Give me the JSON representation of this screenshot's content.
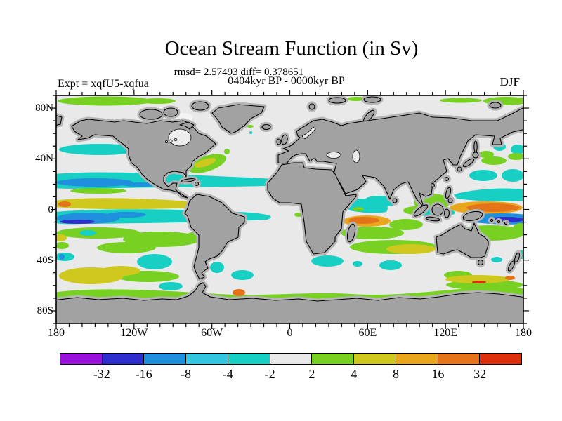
{
  "header": {
    "title": "Ocean Stream Function (in Sv)",
    "stats": "rmsd= 2.57493 diff= 0.378651",
    "period": "0404kyr BP - 0000kyr BP",
    "experiment": "Expt = xqfU5-xqfua",
    "season": "DJF"
  },
  "axes": {
    "lat_labels": [
      "80N",
      "40N",
      "0",
      "40S",
      "80S"
    ],
    "lon_labels": [
      "180",
      "120W",
      "60W",
      "0",
      "60E",
      "120E",
      "180"
    ]
  },
  "colorbar": {
    "tick_labels": [
      "-32",
      "-16",
      "-8",
      "-4",
      "-2",
      "2",
      "4",
      "8",
      "16",
      "32"
    ],
    "colors": [
      "#9912D9",
      "#2E2ECD",
      "#1F90DC",
      "#35C6DF",
      "#17CFC3",
      "#E9E9E9",
      "#77D022",
      "#CFC91F",
      "#E8A71C",
      "#E5731A",
      "#DC2F0E"
    ]
  },
  "chart_data": {
    "type": "filled_contour_map",
    "title": "Ocean Stream Function (in Sv)",
    "units": "Sv",
    "projection": "equirectangular",
    "season": "DJF",
    "experiment_difference": "xqfU5-xqfua",
    "period_difference": "0404kyr BP - 0000kyr BP",
    "stats": {
      "rmsd": 2.57493,
      "diff": 0.378651
    },
    "contour_levels": [
      -32,
      -16,
      -8,
      -4,
      -2,
      2,
      4,
      8,
      16,
      32
    ],
    "level_colors": [
      "#9912D9",
      "#2E2ECD",
      "#1F90DC",
      "#35C6DF",
      "#17CFC3",
      "#E9E9E9",
      "#77D022",
      "#CFC91F",
      "#E8A71C",
      "#E5731A",
      "#DC2F0E"
    ],
    "x_axis": {
      "label_ticks_deg": [
        -180,
        -120,
        -60,
        0,
        60,
        120,
        180
      ],
      "minor_tick_deg": 10,
      "range": [
        -180,
        180
      ]
    },
    "y_axis": {
      "label_ticks_deg": [
        80,
        40,
        0,
        -40,
        -80
      ],
      "minor_tick_deg": 10,
      "range": [
        -90,
        90
      ]
    },
    "land_color": "#A2A2A2",
    "land_mask_halo_color": "#B5B5B5",
    "ocean_neutral_color": "#E9E9E9",
    "notable_regions": [
      {
        "where": "Arctic 80N band",
        "sign": "+2..4"
      },
      {
        "where": "North Pacific 40-45N",
        "sign": "-4..-2"
      },
      {
        "where": "Gulf Stream off Florida",
        "sign": "+4..8"
      },
      {
        "where": "Equatorial Pacific west",
        "sign": "-16..-2 bands with +4..8 stripe"
      },
      {
        "where": "Indian Ocean east of Madagascar",
        "sign": "+8..16"
      },
      {
        "where": "Equatorial West Pacific",
        "sign": "+8..16 over -16..-4"
      },
      {
        "where": "Southern Ocean coastal band",
        "sign": "+2..4"
      },
      {
        "where": "Southeast Pacific 50S",
        "sign": "+4..8"
      }
    ]
  }
}
